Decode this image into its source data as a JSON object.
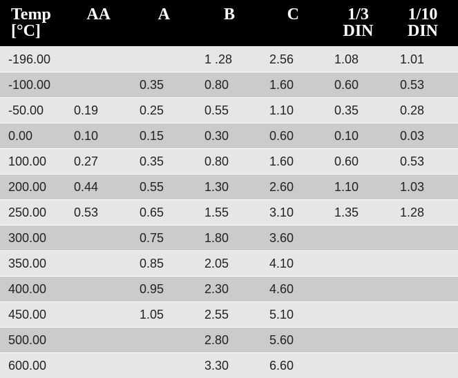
{
  "table": {
    "header": [
      "Temp\n[°C]",
      "AA",
      "A",
      "B",
      "C",
      "1/3\nDIN",
      "1/10\nDIN"
    ],
    "rows": [
      [
        "-196.00",
        null,
        null,
        "1 .28",
        "2.56",
        "1.08",
        "1.01"
      ],
      [
        "-100.00",
        null,
        "0.35",
        "0.80",
        "1.60",
        "0.60",
        "0.53"
      ],
      [
        "-50.00",
        "0.19",
        "0.25",
        "0.55",
        "1.10",
        "0.35",
        "0.28"
      ],
      [
        "0.00",
        "0.10",
        "0.15",
        "0.30",
        "0.60",
        "0.10",
        "0.03"
      ],
      [
        "100.00",
        "0.27",
        "0.35",
        "0.80",
        "1.60",
        "0.60",
        "0.53"
      ],
      [
        "200.00",
        "0.44",
        "0.55",
        "1.30",
        "2.60",
        "1.10",
        "1.03"
      ],
      [
        "250.00",
        "0.53",
        "0.65",
        "1.55",
        "3.10",
        "1.35",
        "1.28"
      ],
      [
        "300.00",
        null,
        "0.75",
        "1.80",
        "3.60",
        null,
        null
      ],
      [
        "350.00",
        null,
        "0.85",
        "2.05",
        "4.10",
        null,
        null
      ],
      [
        "400.00",
        null,
        "0.95",
        "2.30",
        "4.60",
        null,
        null
      ],
      [
        "450.00",
        null,
        "1.05",
        "2.55",
        "5.10",
        null,
        null
      ],
      [
        "500.00",
        null,
        null,
        "2.80",
        "5.60",
        null,
        null
      ],
      [
        "600.00",
        null,
        null,
        "3.30",
        "6.60",
        null,
        null
      ]
    ]
  }
}
